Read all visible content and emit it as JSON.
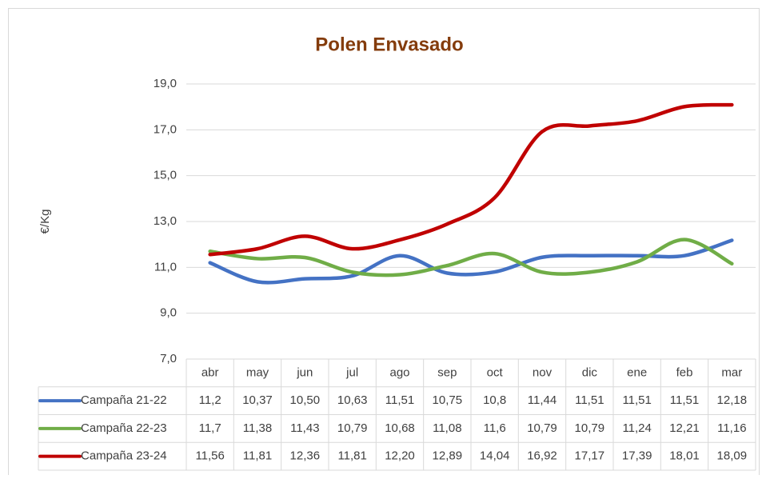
{
  "chart_data": {
    "type": "line",
    "title": "Polen Envasado",
    "y_label": "€/Kg",
    "categories": [
      "abr",
      "may",
      "jun",
      "jul",
      "ago",
      "sep",
      "oct",
      "nov",
      "dic",
      "ene",
      "feb",
      "mar"
    ],
    "series": [
      {
        "name": "Campaña 21-22",
        "color": "#4472c4",
        "values": [
          11.2,
          10.37,
          10.5,
          10.63,
          11.51,
          10.75,
          10.8,
          11.44,
          11.51,
          11.51,
          11.51,
          12.18
        ],
        "value_labels": [
          "11,2",
          "10,37",
          "10,50",
          "10,63",
          "11,51",
          "10,75",
          "10,8",
          "11,44",
          "11,51",
          "11,51",
          "11,51",
          "12,18"
        ]
      },
      {
        "name": "Campaña 22-23",
        "color": "#70ad47",
        "values": [
          11.7,
          11.38,
          11.43,
          10.79,
          10.68,
          11.08,
          11.6,
          10.79,
          10.79,
          11.24,
          12.21,
          11.16
        ],
        "value_labels": [
          "11,7",
          "11,38",
          "11,43",
          "10,79",
          "10,68",
          "11,08",
          "11,6",
          "10,79",
          "10,79",
          "11,24",
          "12,21",
          "11,16"
        ]
      },
      {
        "name": "Campaña 23-24",
        "color": "#c00000",
        "values": [
          11.56,
          11.81,
          12.36,
          11.81,
          12.2,
          12.89,
          14.04,
          16.92,
          17.17,
          17.39,
          18.01,
          18.09
        ],
        "value_labels": [
          "11,56",
          "11,81",
          "12,36",
          "11,81",
          "12,20",
          "12,89",
          "14,04",
          "16,92",
          "17,17",
          "17,39",
          "18,01",
          "18,09"
        ]
      }
    ],
    "ylim": [
      7,
      19
    ],
    "yticks": [
      {
        "value": 7,
        "label": "7,0"
      },
      {
        "value": 9,
        "label": "9,0"
      },
      {
        "value": 11,
        "label": "11,0"
      },
      {
        "value": 13,
        "label": "13,0"
      },
      {
        "value": 15,
        "label": "15,0"
      },
      {
        "value": 17,
        "label": "17,0"
      },
      {
        "value": 19,
        "label": "19,0"
      }
    ],
    "grid": true,
    "smooth": true,
    "data_table": true
  }
}
